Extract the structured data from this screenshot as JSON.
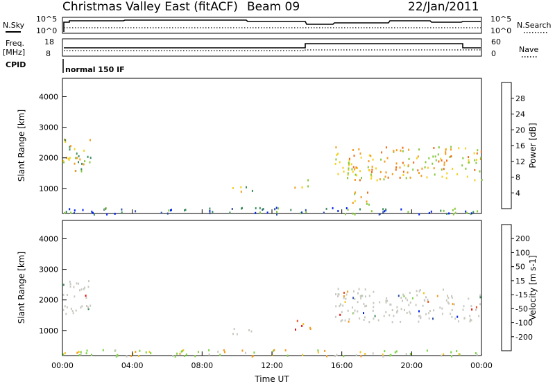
{
  "header": {
    "station": "Christmas Valley East (fitACF)",
    "beam": "Beam 09",
    "date": "22/Jan/2011"
  },
  "status_panels": {
    "nsky_label": "N.Sky",
    "nsearch_label": "N.Search",
    "noise_ticks_left": [
      "10^5",
      "10^0"
    ],
    "noise_ticks_right": [
      "10^5",
      "10^0"
    ],
    "freq_label_1": "Freq.",
    "freq_label_2": "[MHz]",
    "freq_ticks": [
      "18",
      "8"
    ],
    "nave_label": "Nave",
    "nave_ticks": [
      "60",
      "0"
    ],
    "cpid_label": "CPID",
    "cpid_value": "normal 150 IF"
  },
  "colors": {
    "power_scale": [
      "#0022ee",
      "#2f4fa7",
      "#3c8b5b",
      "#86c83a",
      "#f2d21e",
      "#f39a1c",
      "#ef6b18",
      "#e40d0d"
    ],
    "velocity_scale": [
      "#e40d0d",
      "#ef4a1a",
      "#f39a1c",
      "#f3c51c",
      "#c8c8c0",
      "#7bd33c",
      "#3c8b5b",
      "#2f4fa7",
      "#0022ee"
    ]
  },
  "chart_data": [
    {
      "type": "heatmap",
      "panel": "power",
      "xlabel": "",
      "ylabel": "Slant Range [km]",
      "x_ticks": [
        "00:00",
        "04:00",
        "08:00",
        "12:00",
        "16:00",
        "20:00",
        "00:00"
      ],
      "xlim_hours": [
        0,
        24
      ],
      "ylim_km": [
        180,
        4600
      ],
      "y_ticks": [
        "1000",
        "2000",
        "3000",
        "4000"
      ],
      "colorbar_label": "Power [dB]",
      "colorbar_ticks": [
        "4",
        "8",
        "12",
        "16",
        "20",
        "24",
        "28"
      ],
      "colorbar_range": [
        0,
        32
      ],
      "echo_regions": [
        {
          "t_start": 0.0,
          "t_end": 1.6,
          "r_low": 1500,
          "r_high": 2700,
          "level": "medium"
        },
        {
          "t_start": 9.5,
          "t_end": 11.0,
          "r_low": 900,
          "r_high": 1100,
          "level": "medium"
        },
        {
          "t_start": 13.2,
          "t_end": 14.2,
          "r_low": 1050,
          "r_high": 1350,
          "level": "high"
        },
        {
          "t_start": 15.6,
          "t_end": 24.0,
          "r_low": 1300,
          "r_high": 2400,
          "level": "high"
        },
        {
          "t_start": 16.6,
          "t_end": 17.6,
          "r_low": 450,
          "r_high": 1000,
          "level": "high"
        },
        {
          "t_start": 0.0,
          "t_end": 24.0,
          "r_low": 180,
          "r_high": 400,
          "level": "low"
        }
      ]
    },
    {
      "type": "heatmap",
      "panel": "velocity",
      "xlabel": "Time UT",
      "ylabel": "Slant Range [km]",
      "x_ticks": [
        "00:00",
        "04:00",
        "08:00",
        "12:00",
        "16:00",
        "20:00",
        "00:00"
      ],
      "xlim_hours": [
        0,
        24
      ],
      "ylim_km": [
        180,
        4600
      ],
      "y_ticks": [
        "1000",
        "2000",
        "3000",
        "4000"
      ],
      "colorbar_label": "Velocity [m s-1]",
      "colorbar_ticks": [
        "200",
        "100",
        "50",
        "15",
        "-15",
        "-50",
        "-100",
        "-200"
      ],
      "echo_regions": [
        {
          "t_start": 0.0,
          "t_end": 1.6,
          "r_low": 1500,
          "r_high": 2700,
          "level": "near-zero"
        },
        {
          "t_start": 9.5,
          "t_end": 11.0,
          "r_low": 900,
          "r_high": 1100,
          "level": "near-zero"
        },
        {
          "t_start": 13.2,
          "t_end": 14.2,
          "r_low": 1000,
          "r_high": 1350,
          "level": "negative"
        },
        {
          "t_start": 15.6,
          "t_end": 24.0,
          "r_low": 1300,
          "r_high": 2400,
          "level": "near-zero"
        },
        {
          "t_start": 0.0,
          "t_end": 24.0,
          "r_low": 180,
          "r_high": 400,
          "level": "mixed"
        }
      ]
    }
  ]
}
